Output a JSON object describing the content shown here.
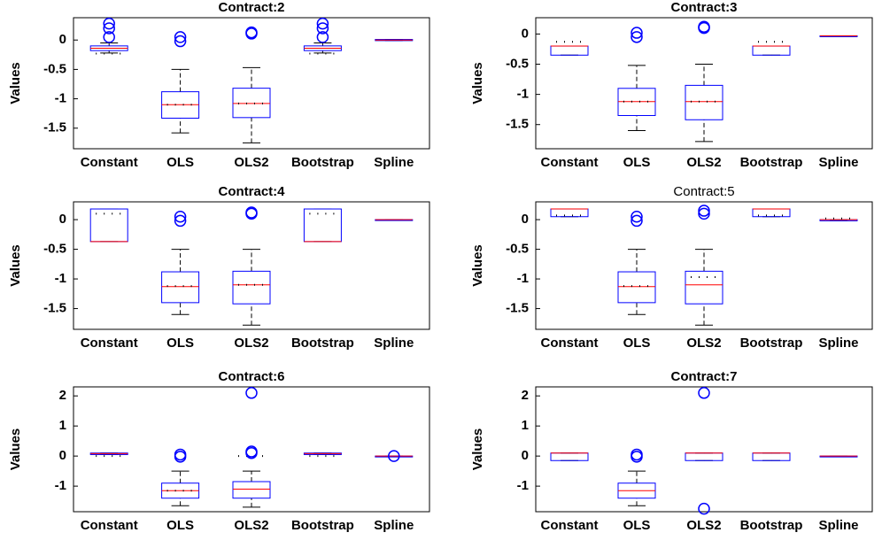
{
  "chart_data": [
    {
      "type": "box",
      "title": "Contract:2",
      "ylabel": "Values",
      "categories": [
        "Constant",
        "OLS",
        "OLS2",
        "Bootstrap",
        "Spline"
      ],
      "ylim": [
        -1.85,
        0.38
      ],
      "yticks": [
        0,
        -0.5,
        -1,
        -1.5
      ],
      "boxes": [
        {
          "min": -0.22,
          "q1": -0.18,
          "median": -0.14,
          "q3": -0.1,
          "max": -0.05,
          "mean": -0.23,
          "outliers": [
            0.28,
            0.2,
            0.05
          ]
        },
        {
          "min": -1.58,
          "q1": -1.33,
          "median": -1.1,
          "q3": -0.88,
          "max": -0.5,
          "mean": -1.1,
          "outliers": [
            0.05,
            -0.02
          ]
        },
        {
          "min": -1.75,
          "q1": -1.32,
          "median": -1.08,
          "q3": -0.82,
          "max": -0.47,
          "mean": -1.08,
          "outliers": [
            0.13,
            0.11
          ]
        },
        {
          "min": -0.22,
          "q1": -0.18,
          "median": -0.14,
          "q3": -0.1,
          "max": -0.05,
          "mean": -0.23,
          "outliers": [
            0.28,
            0.2,
            0.05
          ]
        },
        {
          "min": -0.01,
          "q1": -0.01,
          "median": 0,
          "q3": 0.01,
          "max": 0.01,
          "outliers": []
        }
      ]
    },
    {
      "type": "box",
      "title": "Contract:3",
      "ylabel": "Values",
      "categories": [
        "Constant",
        "OLS",
        "OLS2",
        "Bootstrap",
        "Spline"
      ],
      "ylim": [
        -1.9,
        0.27
      ],
      "yticks": [
        0,
        -0.5,
        -1,
        -1.5
      ],
      "boxes": [
        {
          "min": -0.35,
          "q1": -0.35,
          "median": -0.2,
          "q3": -0.2,
          "max": -0.2,
          "mean": -0.13,
          "outliers": []
        },
        {
          "min": -1.6,
          "q1": -1.35,
          "median": -1.12,
          "q3": -0.9,
          "max": -0.52,
          "mean": -1.12,
          "outliers": [
            0.02,
            -0.05
          ]
        },
        {
          "min": -1.78,
          "q1": -1.42,
          "median": -1.12,
          "q3": -0.85,
          "max": -0.5,
          "mean": -1.12,
          "outliers": [
            0.1,
            0.12
          ]
        },
        {
          "min": -0.35,
          "q1": -0.35,
          "median": -0.2,
          "q3": -0.2,
          "max": -0.2,
          "mean": -0.13,
          "outliers": []
        },
        {
          "min": -0.03,
          "q1": -0.03,
          "median": -0.03,
          "q3": -0.03,
          "max": -0.03,
          "outliers": []
        }
      ]
    },
    {
      "type": "box",
      "title": "Contract:4",
      "ylabel": "Values",
      "categories": [
        "Constant",
        "OLS",
        "OLS2",
        "Bootstrap",
        "Spline"
      ],
      "ylim": [
        -1.85,
        0.3
      ],
      "yticks": [
        0,
        -0.5,
        -1,
        -1.5
      ],
      "boxes": [
        {
          "min": -0.37,
          "q1": -0.37,
          "median": -0.37,
          "q3": 0.18,
          "max": 0.18,
          "mean": 0.1,
          "outliers": []
        },
        {
          "min": -1.6,
          "q1": -1.4,
          "median": -1.13,
          "q3": -0.88,
          "max": -0.5,
          "mean": -1.12,
          "outliers": [
            0.05,
            -0.02
          ]
        },
        {
          "min": -1.78,
          "q1": -1.42,
          "median": -1.1,
          "q3": -0.87,
          "max": -0.5,
          "mean": -1.1,
          "outliers": [
            0.12,
            0.1
          ]
        },
        {
          "min": -0.37,
          "q1": -0.37,
          "median": -0.37,
          "q3": 0.18,
          "max": 0.18,
          "mean": 0.1,
          "outliers": []
        },
        {
          "min": 0,
          "q1": 0,
          "median": 0,
          "q3": 0,
          "max": 0,
          "outliers": []
        }
      ]
    },
    {
      "type": "box",
      "title": "Contract:5",
      "title_weight": "normal",
      "ylabel": "Values",
      "categories": [
        "Constant",
        "OLS",
        "OLS2",
        "Bootstrap",
        "Spline"
      ],
      "ylim": [
        -1.85,
        0.3
      ],
      "yticks": [
        0,
        -0.5,
        -1,
        -1.5
      ],
      "boxes": [
        {
          "min": 0.05,
          "q1": 0.05,
          "median": 0.18,
          "q3": 0.18,
          "max": 0.18,
          "mean": 0.07,
          "outliers": []
        },
        {
          "min": -1.6,
          "q1": -1.4,
          "median": -1.13,
          "q3": -0.88,
          "max": -0.5,
          "mean": -1.12,
          "outliers": [
            0.05,
            -0.02
          ]
        },
        {
          "min": -1.78,
          "q1": -1.42,
          "median": -1.1,
          "q3": -0.87,
          "max": -0.5,
          "mean": -0.97,
          "outliers": [
            0.15,
            0.1
          ]
        },
        {
          "min": 0.05,
          "q1": 0.05,
          "median": 0.18,
          "q3": 0.18,
          "max": 0.18,
          "mean": 0.07,
          "outliers": []
        },
        {
          "min": -0.02,
          "q1": -0.02,
          "median": 0,
          "q3": 0,
          "max": 0,
          "mean": 0.02,
          "outliers": []
        }
      ]
    },
    {
      "type": "box",
      "title": "Contract:6",
      "ylabel": "Values",
      "categories": [
        "Constant",
        "OLS",
        "OLS2",
        "Bootstrap",
        "Spline"
      ],
      "ylim": [
        -1.85,
        2.3
      ],
      "yticks": [
        -1,
        0,
        1,
        2
      ],
      "boxes": [
        {
          "min": 0.05,
          "q1": 0.05,
          "median": 0.08,
          "q3": 0.1,
          "max": 0.1,
          "mean": 0,
          "outliers": []
        },
        {
          "min": -1.65,
          "q1": -1.4,
          "median": -1.15,
          "q3": -0.9,
          "max": -0.5,
          "mean": -1.15,
          "outliers": [
            0.05,
            -0.02
          ]
        },
        {
          "min": -1.7,
          "q1": -1.4,
          "median": -1.1,
          "q3": -0.85,
          "max": -0.5,
          "mean": 0,
          "outliers": [
            2.1,
            0.15,
            0.1
          ]
        },
        {
          "min": 0.05,
          "q1": 0.05,
          "median": 0.08,
          "q3": 0.1,
          "max": 0.1,
          "mean": 0,
          "outliers": []
        },
        {
          "min": 0,
          "q1": 0,
          "median": 0,
          "q3": 0,
          "max": 0,
          "outliers": [
            0
          ]
        }
      ]
    },
    {
      "type": "box",
      "title": "Contract:7",
      "ylabel": "Values",
      "categories": [
        "Constant",
        "OLS",
        "OLS2",
        "Bootstrap",
        "Spline"
      ],
      "ylim": [
        -1.85,
        2.3
      ],
      "yticks": [
        -1,
        0,
        1,
        2
      ],
      "boxes": [
        {
          "min": -0.15,
          "q1": -0.15,
          "median": 0.1,
          "q3": 0.1,
          "max": 0.1,
          "outliers": []
        },
        {
          "min": -1.65,
          "q1": -1.4,
          "median": -1.15,
          "q3": -0.9,
          "max": -0.5,
          "outliers": [
            0.05,
            -0.02
          ]
        },
        {
          "min": -0.15,
          "q1": -0.15,
          "median": 0.1,
          "q3": 0.1,
          "max": 0.1,
          "outliers": [
            2.1,
            -1.75
          ]
        },
        {
          "min": -0.15,
          "q1": -0.15,
          "median": 0.1,
          "q3": 0.1,
          "max": 0.1,
          "outliers": []
        },
        {
          "min": 0,
          "q1": 0,
          "median": 0,
          "q3": 0,
          "max": 0,
          "outliers": []
        }
      ]
    }
  ]
}
